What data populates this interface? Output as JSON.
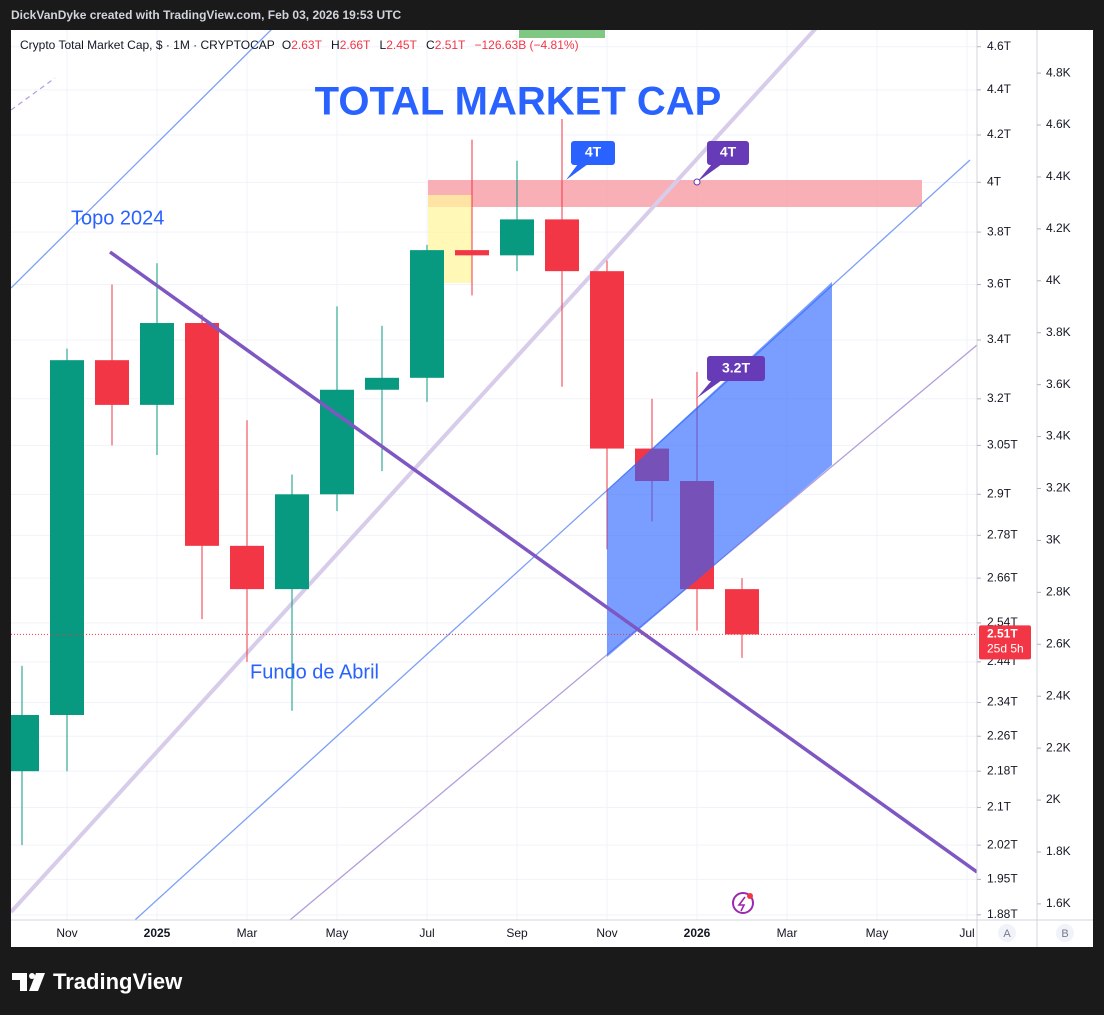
{
  "header": {
    "attribution": "DickVanDyke created with TradingView.com, Feb 03, 2026 19:53 UTC"
  },
  "legend": {
    "symbol": "Crypto Total Market Cap, $ · 1M · CRYPTOCAP",
    "ohlc": [
      {
        "key": "O",
        "value": "2.63T"
      },
      {
        "key": "H",
        "value": "2.66T"
      },
      {
        "key": "L",
        "value": "2.45T"
      },
      {
        "key": "C",
        "value": "2.51T"
      }
    ],
    "change": "−126.63B (−4.81%)"
  },
  "chart_data": {
    "type": "candlestick",
    "title": "TOTAL MARKET CAP",
    "categories": [
      null,
      "Nov",
      null,
      "2025",
      null,
      "Mar",
      null,
      "May",
      null,
      "Jul",
      null,
      "Sep",
      null,
      "Nov",
      null,
      "2026",
      null,
      "Mar",
      null,
      "May",
      null,
      "Jul"
    ],
    "open": [
      2.18,
      2.31,
      3.33,
      3.18,
      3.46,
      2.75,
      2.63,
      2.9,
      3.23,
      3.27,
      3.73,
      3.71,
      3.85,
      3.65,
      3.04,
      2.94,
      2.63,
      null,
      null,
      null,
      null,
      null
    ],
    "high": [
      2.43,
      3.37,
      3.6,
      3.68,
      3.49,
      3.13,
      2.96,
      3.52,
      3.45,
      3.75,
      4.18,
      4.09,
      4.27,
      3.69,
      3.2,
      3.29,
      2.66,
      null,
      null,
      null,
      null,
      null
    ],
    "low": [
      2.02,
      2.18,
      3.05,
      3.02,
      2.55,
      2.44,
      2.32,
      2.85,
      2.97,
      3.19,
      3.56,
      3.65,
      3.24,
      2.74,
      2.82,
      2.52,
      2.45,
      null,
      null,
      null,
      null,
      null
    ],
    "close": [
      2.31,
      3.33,
      3.18,
      3.46,
      2.75,
      2.63,
      2.9,
      3.23,
      3.27,
      3.73,
      3.71,
      3.85,
      3.65,
      3.04,
      2.94,
      2.63,
      2.51,
      null,
      null,
      null,
      null,
      null
    ],
    "colors": {
      "up": "#089981",
      "down": "#f23645"
    },
    "log_scale": true,
    "grid": true,
    "ylim": [
      1.87,
      4.68
    ],
    "yticks": [
      {
        "value": 4.6,
        "label": "4.6T"
      },
      {
        "value": 4.4,
        "label": "4.4T"
      },
      {
        "value": 4.2,
        "label": "4.2T"
      },
      {
        "value": 4,
        "label": "4T"
      },
      {
        "value": 3.8,
        "label": "3.8T"
      },
      {
        "value": 3.6,
        "label": "3.6T"
      },
      {
        "value": 3.4,
        "label": "3.4T"
      },
      {
        "value": 3.2,
        "label": "3.2T"
      },
      {
        "value": 3.05,
        "label": "3.05T"
      },
      {
        "value": 2.9,
        "label": "2.9T"
      },
      {
        "value": 2.78,
        "label": "2.78T"
      },
      {
        "value": 2.66,
        "label": "2.66T"
      },
      {
        "value": 2.54,
        "label": "2.54T"
      },
      {
        "value": 2.44,
        "label": "2.44T"
      },
      {
        "value": 2.34,
        "label": "2.34T"
      },
      {
        "value": 2.26,
        "label": "2.26T"
      },
      {
        "value": 2.18,
        "label": "2.18T"
      },
      {
        "value": 2.1,
        "label": "2.1T"
      },
      {
        "value": 2.02,
        "label": "2.02T"
      },
      {
        "value": 1.95,
        "label": "1.95T"
      },
      {
        "value": 1.88,
        "label": "1.88T"
      }
    ],
    "y2lim": [
      1.538,
      4.966
    ],
    "y2ticks": [
      {
        "value": 4.8,
        "label": "4.8K"
      },
      {
        "value": 4.6,
        "label": "4.6K"
      },
      {
        "value": 4.4,
        "label": "4.4K"
      },
      {
        "value": 4.2,
        "label": "4.2K"
      },
      {
        "value": 4,
        "label": "4K"
      },
      {
        "value": 3.8,
        "label": "3.8K"
      },
      {
        "value": 3.6,
        "label": "3.6K"
      },
      {
        "value": 3.4,
        "label": "3.4K"
      },
      {
        "value": 3.2,
        "label": "3.2K"
      },
      {
        "value": 3,
        "label": "3K"
      },
      {
        "value": 2.8,
        "label": "2.8K"
      },
      {
        "value": 2.6,
        "label": "2.6K"
      },
      {
        "value": 2.4,
        "label": "2.4K"
      },
      {
        "value": 2.2,
        "label": "2.2K"
      },
      {
        "value": 2,
        "label": "2K"
      },
      {
        "value": 1.8,
        "label": "1.8K"
      },
      {
        "value": 1.6,
        "label": "1.6K"
      }
    ],
    "annotations": [
      "Topo 2024",
      "Fundo de Abril"
    ],
    "callouts": [
      "4T",
      "4T",
      "3.2T"
    ],
    "last_price_label": "2.51T",
    "countdown": "25d 5h"
  },
  "scale_buttons": [
    "A",
    "B"
  ],
  "footer": {
    "brand": "TradingView"
  }
}
